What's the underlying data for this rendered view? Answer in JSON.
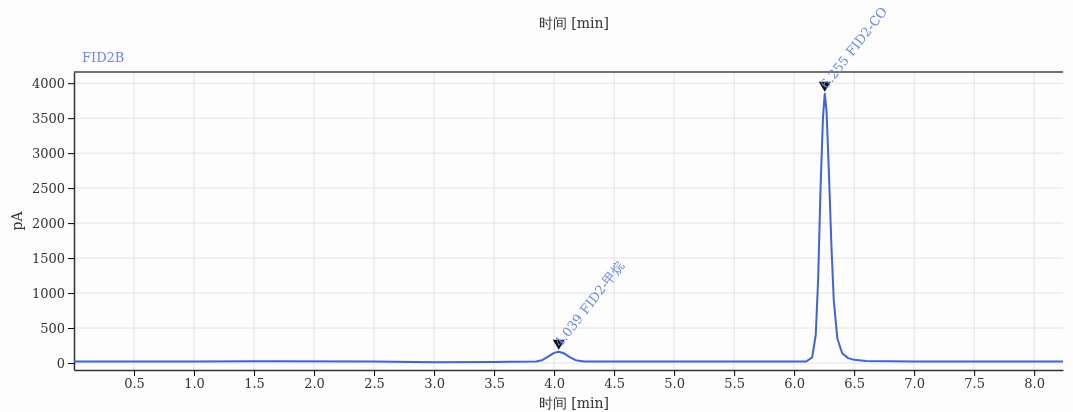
{
  "chart_data": {
    "type": "line",
    "title": "时间 [min]",
    "subtitle": "FID2B",
    "xlabel": "时间 [min]",
    "ylabel": "pA",
    "xlim": [
      0,
      8.24
    ],
    "ylim": [
      -100,
      4160
    ],
    "xticks": [
      {
        "value": 0.5,
        "label": "0.5"
      },
      {
        "value": 1,
        "label": "1.0"
      },
      {
        "value": 1.5,
        "label": "1.5"
      },
      {
        "value": 2,
        "label": "2.0"
      },
      {
        "value": 2.5,
        "label": "2.5"
      },
      {
        "value": 3,
        "label": "3.0"
      },
      {
        "value": 3.5,
        "label": "3.5"
      },
      {
        "value": 4,
        "label": "4.0"
      },
      {
        "value": 4.5,
        "label": "4.5"
      },
      {
        "value": 5,
        "label": "5.0"
      },
      {
        "value": 5.5,
        "label": "5.5"
      },
      {
        "value": 6,
        "label": "6.0"
      },
      {
        "value": 6.5,
        "label": "6.5"
      },
      {
        "value": 7,
        "label": "7.0"
      },
      {
        "value": 7.5,
        "label": "7.5"
      },
      {
        "value": 8,
        "label": "8.0"
      }
    ],
    "yticks": [
      0,
      500,
      1000,
      1500,
      2000,
      2500,
      3000,
      3500,
      4000
    ],
    "grid": true,
    "line_style": "solid",
    "marker": "none",
    "series": [
      {
        "color": "#3f63dc",
        "x": [
          0,
          1,
          1.7,
          2.5,
          3,
          3.5,
          3.85,
          3.9,
          3.95,
          4.0,
          4.039,
          4.08,
          4.13,
          4.18,
          4.25,
          5,
          6,
          6.1,
          6.15,
          6.18,
          6.2,
          6.22,
          6.24,
          6.255,
          6.27,
          6.29,
          6.31,
          6.33,
          6.36,
          6.4,
          6.45,
          6.5,
          6.6,
          7,
          8.24
        ],
        "values": [
          20,
          20,
          25,
          20,
          12,
          15,
          22,
          40,
          90,
          145,
          160,
          140,
          85,
          40,
          22,
          20,
          20,
          22,
          80,
          400,
          1200,
          2500,
          3500,
          3850,
          3600,
          2700,
          1700,
          900,
          350,
          140,
          70,
          45,
          30,
          22,
          20
        ]
      }
    ],
    "annotations": [
      {
        "text": "4.039 FID2-甲烷",
        "x": 4.039,
        "y": 160
      },
      {
        "text": "6.255 FID2-CO",
        "x": 6.255,
        "y": 3850
      }
    ]
  }
}
